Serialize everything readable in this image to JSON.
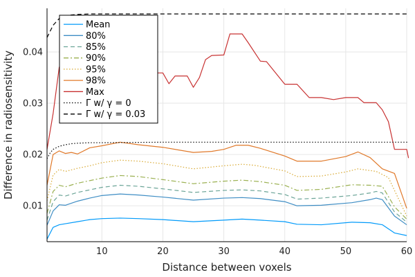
{
  "chart_data": {
    "type": "line",
    "xlabel": "Distance between voxels",
    "ylabel": "Difference in radiosensitivity",
    "xlim": [
      1,
      60
    ],
    "ylim": [
      0.003,
      0.0485
    ],
    "xticks": [
      10,
      20,
      30,
      40,
      50,
      60
    ],
    "yticks": [
      0.01,
      0.02,
      0.03,
      0.04
    ],
    "ytick_labels": [
      "0.01",
      "0.02",
      "0.03",
      "0.04"
    ],
    "grid": true,
    "legend_position": "top-left",
    "series": [
      {
        "name": "Mean",
        "color": "#009AFA",
        "dash": "solid",
        "points": [
          [
            1,
            0.0035
          ],
          [
            2,
            0.0058
          ],
          [
            3,
            0.0063
          ],
          [
            4,
            0.0065
          ],
          [
            6,
            0.0069
          ],
          [
            8,
            0.0073
          ],
          [
            10,
            0.0075
          ],
          [
            13,
            0.0076
          ],
          [
            16,
            0.0075
          ],
          [
            20,
            0.0073
          ],
          [
            25,
            0.0069
          ],
          [
            30,
            0.0072
          ],
          [
            33,
            0.0074
          ],
          [
            36,
            0.0072
          ],
          [
            40,
            0.0069
          ],
          [
            42,
            0.0064
          ],
          [
            46,
            0.0063
          ],
          [
            51,
            0.0068
          ],
          [
            54,
            0.0067
          ],
          [
            56,
            0.0063
          ],
          [
            58,
            0.0047
          ],
          [
            60,
            0.0042
          ]
        ]
      },
      {
        "name": "80%",
        "color": "#3E8DC4",
        "dash": "solid",
        "points": [
          [
            1,
            0.0062
          ],
          [
            2,
            0.009
          ],
          [
            3,
            0.0102
          ],
          [
            4,
            0.0101
          ],
          [
            6,
            0.0109
          ],
          [
            8,
            0.0115
          ],
          [
            10,
            0.012
          ],
          [
            13,
            0.0123
          ],
          [
            16,
            0.0121
          ],
          [
            20,
            0.0117
          ],
          [
            25,
            0.0111
          ],
          [
            30,
            0.0115
          ],
          [
            33,
            0.0116
          ],
          [
            36,
            0.0114
          ],
          [
            40,
            0.0108
          ],
          [
            42,
            0.01
          ],
          [
            46,
            0.0101
          ],
          [
            51,
            0.0106
          ],
          [
            54,
            0.0112
          ],
          [
            55,
            0.0115
          ],
          [
            56,
            0.0112
          ],
          [
            58,
            0.008
          ],
          [
            60,
            0.0063
          ]
        ]
      },
      {
        "name": "85%",
        "color": "#6BA497",
        "dash": "dash",
        "points": [
          [
            1,
            0.0072
          ],
          [
            2,
            0.0108
          ],
          [
            3,
            0.0121
          ],
          [
            4,
            0.0119
          ],
          [
            6,
            0.0126
          ],
          [
            8,
            0.0131
          ],
          [
            10,
            0.0136
          ],
          [
            13,
            0.014
          ],
          [
            16,
            0.0138
          ],
          [
            20,
            0.0133
          ],
          [
            25,
            0.0126
          ],
          [
            30,
            0.013
          ],
          [
            33,
            0.0131
          ],
          [
            36,
            0.0129
          ],
          [
            40,
            0.0122
          ],
          [
            42,
            0.0113
          ],
          [
            46,
            0.0115
          ],
          [
            51,
            0.012
          ],
          [
            54,
            0.0125
          ],
          [
            55,
            0.0128
          ],
          [
            56,
            0.0125
          ],
          [
            58,
            0.0088
          ],
          [
            60,
            0.0068
          ]
        ]
      },
      {
        "name": "90%",
        "color": "#9AB050",
        "dash": "dashdot",
        "points": [
          [
            1,
            0.0085
          ],
          [
            2,
            0.0128
          ],
          [
            3,
            0.014
          ],
          [
            4,
            0.0137
          ],
          [
            6,
            0.0144
          ],
          [
            8,
            0.0149
          ],
          [
            10,
            0.0154
          ],
          [
            13,
            0.0159
          ],
          [
            16,
            0.0157
          ],
          [
            20,
            0.0151
          ],
          [
            25,
            0.0143
          ],
          [
            30,
            0.0148
          ],
          [
            33,
            0.015
          ],
          [
            36,
            0.0147
          ],
          [
            40,
            0.014
          ],
          [
            42,
            0.013
          ],
          [
            46,
            0.0132
          ],
          [
            51,
            0.0141
          ],
          [
            54,
            0.014
          ],
          [
            56,
            0.0138
          ],
          [
            58,
            0.0098
          ],
          [
            60,
            0.0074
          ]
        ]
      },
      {
        "name": "95%",
        "color": "#D8A830",
        "dash": "dot",
        "points": [
          [
            1,
            0.011
          ],
          [
            2,
            0.016
          ],
          [
            3,
            0.0171
          ],
          [
            4,
            0.0167
          ],
          [
            6,
            0.0173
          ],
          [
            8,
            0.0178
          ],
          [
            10,
            0.0184
          ],
          [
            13,
            0.0189
          ],
          [
            16,
            0.0187
          ],
          [
            20,
            0.0182
          ],
          [
            25,
            0.0172
          ],
          [
            30,
            0.0178
          ],
          [
            33,
            0.0181
          ],
          [
            35,
            0.0179
          ],
          [
            40,
            0.0168
          ],
          [
            42,
            0.0157
          ],
          [
            46,
            0.0158
          ],
          [
            50,
            0.0166
          ],
          [
            52,
            0.0172
          ],
          [
            55,
            0.0167
          ],
          [
            57,
            0.0155
          ],
          [
            60,
            0.008
          ]
        ]
      },
      {
        "name": "98%",
        "color": "#E07828",
        "dash": "solid",
        "points": [
          [
            1,
            0.014
          ],
          [
            2,
            0.02
          ],
          [
            3,
            0.0207
          ],
          [
            4,
            0.0202
          ],
          [
            5,
            0.0204
          ],
          [
            6,
            0.0201
          ],
          [
            8,
            0.0213
          ],
          [
            10,
            0.0217
          ],
          [
            13,
            0.0224
          ],
          [
            16,
            0.0219
          ],
          [
            20,
            0.0214
          ],
          [
            25,
            0.0204
          ],
          [
            28,
            0.0206
          ],
          [
            30,
            0.021
          ],
          [
            32,
            0.0218
          ],
          [
            34,
            0.0218
          ],
          [
            36,
            0.0212
          ],
          [
            40,
            0.0197
          ],
          [
            42,
            0.0187
          ],
          [
            46,
            0.0187
          ],
          [
            50,
            0.0196
          ],
          [
            52,
            0.0205
          ],
          [
            54,
            0.0194
          ],
          [
            56,
            0.0172
          ],
          [
            58,
            0.0163
          ],
          [
            60,
            0.0095
          ]
        ]
      },
      {
        "name": "Max",
        "color": "#C83232",
        "dash": "solid",
        "points": [
          [
            1,
            0.021
          ],
          [
            2,
            0.028
          ],
          [
            3,
            0.037
          ],
          [
            4,
            0.0395
          ],
          [
            5,
            0.0393
          ],
          [
            6,
            0.0392
          ],
          [
            8,
            0.0392
          ],
          [
            10,
            0.039
          ],
          [
            12,
            0.0388
          ],
          [
            15,
            0.0375
          ],
          [
            17,
            0.0372
          ],
          [
            19,
            0.0359
          ],
          [
            20,
            0.0359
          ],
          [
            21,
            0.0338
          ],
          [
            22,
            0.0353
          ],
          [
            24,
            0.0353
          ],
          [
            25,
            0.0331
          ],
          [
            26,
            0.035
          ],
          [
            27,
            0.0385
          ],
          [
            28,
            0.0393
          ],
          [
            30,
            0.0394
          ],
          [
            31,
            0.0435
          ],
          [
            33,
            0.0435
          ],
          [
            34,
            0.0418
          ],
          [
            36,
            0.0382
          ],
          [
            37,
            0.0381
          ],
          [
            40,
            0.0337
          ],
          [
            42,
            0.0337
          ],
          [
            44,
            0.0311
          ],
          [
            46,
            0.0311
          ],
          [
            48,
            0.0307
          ],
          [
            50,
            0.0311
          ],
          [
            52,
            0.0311
          ],
          [
            53,
            0.0301
          ],
          [
            55,
            0.0301
          ],
          [
            56,
            0.0287
          ],
          [
            57,
            0.0264
          ],
          [
            58,
            0.021
          ],
          [
            60,
            0.021
          ],
          [
            60.3,
            0.0193
          ]
        ]
      },
      {
        "name": "Γ w/ γ = 0",
        "color": "#000000",
        "dash": "dot",
        "points": [
          [
            1,
            0.0192
          ],
          [
            1.5,
            0.0203
          ],
          [
            2,
            0.021
          ],
          [
            3,
            0.0216
          ],
          [
            4,
            0.0219
          ],
          [
            5,
            0.0221
          ],
          [
            6,
            0.0222
          ],
          [
            8,
            0.0223
          ],
          [
            10,
            0.0223
          ],
          [
            20,
            0.0224
          ],
          [
            60.3,
            0.0224
          ]
        ]
      },
      {
        "name": "Γ w/ γ = 0.03",
        "color": "#000000",
        "dash": "dash",
        "points": [
          [
            1,
            0.0428
          ],
          [
            1.5,
            0.044
          ],
          [
            2,
            0.0452
          ],
          [
            3,
            0.0465
          ],
          [
            4,
            0.047
          ],
          [
            5,
            0.0472
          ],
          [
            6,
            0.0473
          ],
          [
            8,
            0.0474
          ],
          [
            10,
            0.0474
          ],
          [
            20,
            0.0474
          ],
          [
            60.3,
            0.0474
          ]
        ]
      }
    ]
  }
}
